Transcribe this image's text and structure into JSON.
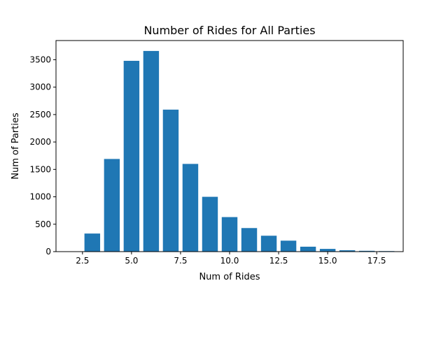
{
  "chart_data": {
    "type": "bar",
    "title": "Number of Rides for All Parties",
    "xlabel": "Num of Rides",
    "ylabel": "Num of Parties",
    "x": [
      2,
      3,
      4,
      5,
      6,
      7,
      8,
      9,
      10,
      11,
      12,
      13,
      14,
      15,
      16,
      17,
      18
    ],
    "values": [
      0,
      330,
      1690,
      3480,
      3660,
      2590,
      1600,
      1000,
      630,
      430,
      290,
      200,
      90,
      50,
      25,
      15,
      10
    ],
    "xlim": [
      1.15,
      18.85
    ],
    "ylim": [
      0,
      3850
    ],
    "xticks": [
      2.5,
      5.0,
      7.5,
      10.0,
      12.5,
      15.0,
      17.5
    ],
    "xtick_labels": [
      "2.5",
      "5.0",
      "7.5",
      "10.0",
      "12.5",
      "15.0",
      "17.5"
    ],
    "yticks": [
      0,
      500,
      1000,
      1500,
      2000,
      2500,
      3000,
      3500
    ],
    "ytick_labels": [
      "0",
      "500",
      "1000",
      "1500",
      "2000",
      "2500",
      "3000",
      "3500"
    ],
    "bar_width": 0.8,
    "bar_color": "#1f77b4",
    "grid": false,
    "legend": "none"
  }
}
